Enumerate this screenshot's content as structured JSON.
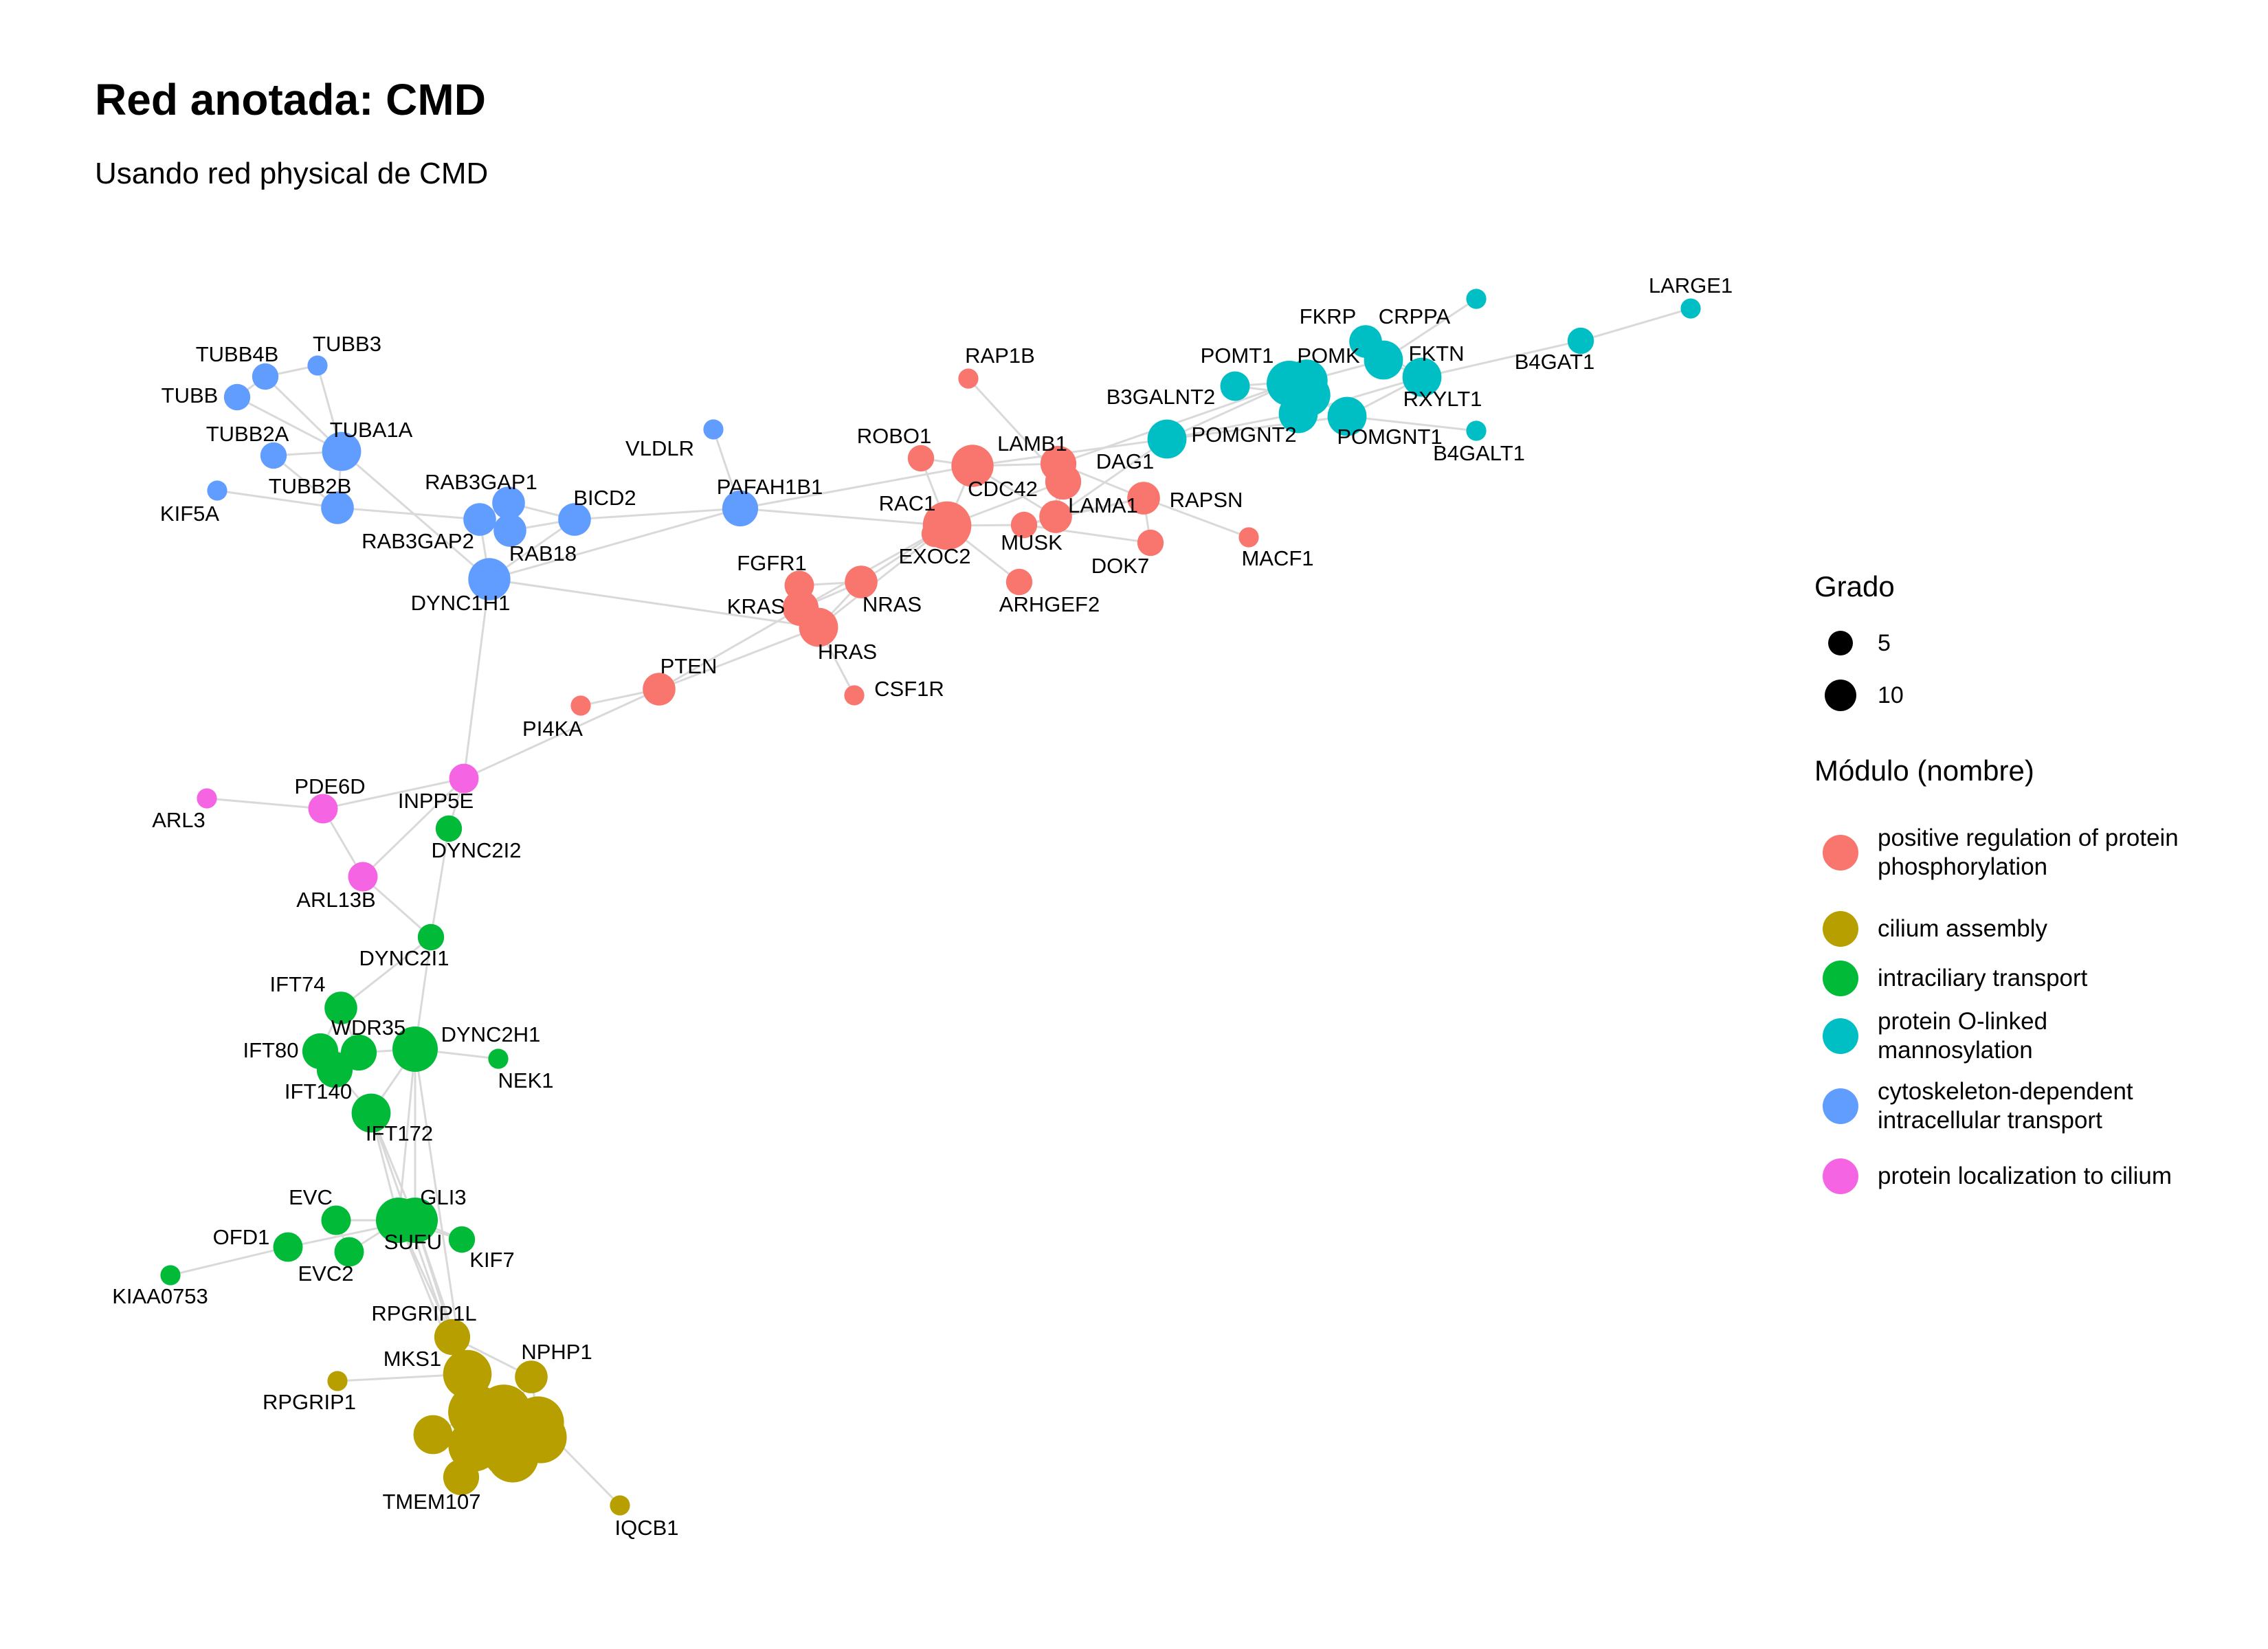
{
  "title": "Red anotada: CMD",
  "subtitle": "Usando red physical de CMD",
  "legend": {
    "size_title": "Grado",
    "sizes": [
      {
        "label": "5",
        "value": 5
      },
      {
        "label": "10",
        "value": 10
      }
    ],
    "module_title": "Módulo (nombre)",
    "modules": [
      {
        "id": "phos",
        "label": "positive regulation of protein phosphorylation",
        "color": "#F8766D"
      },
      {
        "id": "cil",
        "label": "cilium assembly",
        "color": "#B79F00"
      },
      {
        "id": "ift",
        "label": "intraciliary transport",
        "color": "#00BA38"
      },
      {
        "id": "man",
        "label": "protein O-linked mannosylation",
        "color": "#00BFC4"
      },
      {
        "id": "cyto",
        "label": "cytoskeleton-dependent intracellular transport",
        "color": "#619CFF"
      },
      {
        "id": "loc",
        "label": "protein localization to cilium",
        "color": "#F564E3"
      }
    ]
  },
  "edge_color": "#d9d9d9",
  "nodes": [
    {
      "id": "TUBB4B",
      "label": "TUBB4B",
      "module": "cyto",
      "degree": 4
    },
    {
      "id": "TUBB3",
      "label": "TUBB3",
      "module": "cyto",
      "degree": 2
    },
    {
      "id": "TUBB",
      "label": "TUBB",
      "module": "cyto",
      "degree": 4
    },
    {
      "id": "TUBB2A",
      "label": "TUBB2A",
      "module": "cyto",
      "degree": 4
    },
    {
      "id": "TUBA1A",
      "label": "TUBA1A",
      "module": "cyto",
      "degree": 8
    },
    {
      "id": "KIF5A",
      "label": "KIF5A",
      "module": "cyto",
      "degree": 2
    },
    {
      "id": "TUBB2B",
      "label": "TUBB2B",
      "module": "cyto",
      "degree": 6
    },
    {
      "id": "RAB3GAP1",
      "label": "RAB3GAP1",
      "module": "cyto",
      "degree": 6
    },
    {
      "id": "RAB3GAP2",
      "label": "RAB3GAP2",
      "module": "cyto",
      "degree": 6
    },
    {
      "id": "RAB18",
      "label": "RAB18",
      "module": "cyto",
      "degree": 6
    },
    {
      "id": "BICD2",
      "label": "BICD2",
      "module": "cyto",
      "degree": 6
    },
    {
      "id": "DYNC1H1",
      "label": "DYNC1H1",
      "module": "cyto",
      "degree": 9
    },
    {
      "id": "VLDLR",
      "label": "VLDLR",
      "module": "cyto",
      "degree": 2
    },
    {
      "id": "PAFAH1B1",
      "label": "PAFAH1B1",
      "module": "cyto",
      "degree": 7
    },
    {
      "id": "RAP1B",
      "label": "RAP1B",
      "module": "phos",
      "degree": 2
    },
    {
      "id": "ROBO1",
      "label": "ROBO1",
      "module": "phos",
      "degree": 4
    },
    {
      "id": "LAMB1",
      "label": "LAMB1",
      "module": "phos",
      "degree": 9
    },
    {
      "id": "DAG1",
      "label": "DAG1",
      "module": "phos",
      "degree": 7
    },
    {
      "id": "CDC42",
      "label": "CDC42",
      "module": "phos",
      "degree": 7
    },
    {
      "id": "RAC1",
      "label": "RAC1",
      "module": "phos",
      "degree": 11
    },
    {
      "id": "LAMA1",
      "label": "LAMA1",
      "module": "phos",
      "degree": 6
    },
    {
      "id": "RAPSN",
      "label": "RAPSN",
      "module": "phos",
      "degree": 6
    },
    {
      "id": "MUSK",
      "label": "MUSK",
      "module": "phos",
      "degree": 4
    },
    {
      "id": "DOK7",
      "label": "DOK7",
      "module": "phos",
      "degree": 4
    },
    {
      "id": "MACF1",
      "label": "MACF1",
      "module": "phos",
      "degree": 2
    },
    {
      "id": "EXOC2",
      "label": "EXOC2",
      "module": "phos",
      "degree": 4
    },
    {
      "id": "ARHGEF2",
      "label": "ARHGEF2",
      "module": "phos",
      "degree": 4
    },
    {
      "id": "FGFR1",
      "label": "FGFR1",
      "module": "phos",
      "degree": 5
    },
    {
      "id": "NRAS",
      "label": "NRAS",
      "module": "phos",
      "degree": 6
    },
    {
      "id": "KRAS",
      "label": "KRAS",
      "module": "phos",
      "degree": 7
    },
    {
      "id": "HRAS",
      "label": "HRAS",
      "module": "phos",
      "degree": 8
    },
    {
      "id": "CSF1R",
      "label": "CSF1R",
      "module": "phos",
      "degree": 2
    },
    {
      "id": "PTEN",
      "label": "PTEN",
      "module": "phos",
      "degree": 6
    },
    {
      "id": "PI4KA",
      "label": "PI4KA",
      "module": "phos",
      "degree": 2
    },
    {
      "id": "FKRP",
      "label": "FKRP",
      "module": "man",
      "degree": 6
    },
    {
      "id": "CRPPA",
      "label": "CRPPA",
      "module": "man",
      "degree": 8
    },
    {
      "id": "POMT1",
      "label": "POMT1",
      "module": "man",
      "degree": 5
    },
    {
      "id": "POMK",
      "label": "POMK",
      "module": "man",
      "degree": 9
    },
    {
      "id": "FKTN",
      "label": "FKTN",
      "module": "man",
      "degree": 8
    },
    {
      "id": "B3GALNT2",
      "label": "B3GALNT2",
      "module": "man",
      "degree": 10
    },
    {
      "id": "POMT2",
      "label": "",
      "module": "man",
      "degree": 9
    },
    {
      "id": "RXYLT1",
      "label": "RXYLT1",
      "module": "man",
      "degree": 8
    },
    {
      "id": "POMGNT2",
      "label": "POMGNT2",
      "module": "man",
      "degree": 8
    },
    {
      "id": "POMGNT1",
      "label": "POMGNT1",
      "module": "man",
      "degree": 8
    },
    {
      "id": "B4GAT1",
      "label": "B4GAT1",
      "module": "man",
      "degree": 4
    },
    {
      "id": "B4GALT1",
      "label": "B4GALT1",
      "module": "man",
      "degree": 2
    },
    {
      "id": "LARGE1",
      "label": "LARGE1",
      "module": "man",
      "degree": 2
    },
    {
      "id": "MAN_EXTRA",
      "label": "",
      "module": "man",
      "degree": 2
    },
    {
      "id": "INPP5E",
      "label": "INPP5E",
      "module": "loc",
      "degree": 5
    },
    {
      "id": "PDE6D",
      "label": "PDE6D",
      "module": "loc",
      "degree": 5
    },
    {
      "id": "ARL3",
      "label": "ARL3",
      "module": "loc",
      "degree": 2
    },
    {
      "id": "ARL13B",
      "label": "ARL13B",
      "module": "loc",
      "degree": 5
    },
    {
      "id": "DYNC2I2",
      "label": "DYNC2I2",
      "module": "ift",
      "degree": 4
    },
    {
      "id": "DYNC2I1",
      "label": "DYNC2I1",
      "module": "ift",
      "degree": 4
    },
    {
      "id": "IFT74",
      "label": "IFT74",
      "module": "ift",
      "degree": 6
    },
    {
      "id": "WDR35",
      "label": "WDR35",
      "module": "ift",
      "degree": 7
    },
    {
      "id": "IFT80",
      "label": "IFT80",
      "module": "ift",
      "degree": 7
    },
    {
      "id": "IFT140",
      "label": "IFT140",
      "module": "ift",
      "degree": 7
    },
    {
      "id": "DYNC2H1",
      "label": "DYNC2H1",
      "module": "ift",
      "degree": 10
    },
    {
      "id": "NEK1",
      "label": "NEK1",
      "module": "ift",
      "degree": 2
    },
    {
      "id": "IFT172",
      "label": "IFT172",
      "module": "ift",
      "degree": 8
    },
    {
      "id": "EVC",
      "label": "EVC",
      "module": "ift",
      "degree": 5
    },
    {
      "id": "GLI3",
      "label": "GLI3",
      "module": "ift",
      "degree": 10
    },
    {
      "id": "SUFU",
      "label": "SUFU",
      "module": "ift",
      "degree": 10
    },
    {
      "id": "OFD1",
      "label": "OFD1",
      "module": "ift",
      "degree": 5
    },
    {
      "id": "EVC2",
      "label": "EVC2",
      "module": "ift",
      "degree": 5
    },
    {
      "id": "KIF7",
      "label": "KIF7",
      "module": "ift",
      "degree": 4
    },
    {
      "id": "KIAA0753",
      "label": "KIAA0753",
      "module": "ift",
      "degree": 2
    },
    {
      "id": "RPGRIP1L",
      "label": "RPGRIP1L",
      "module": "cil",
      "degree": 7
    },
    {
      "id": "MKS1",
      "label": "MKS1",
      "module": "cil",
      "degree": 11
    },
    {
      "id": "NPHP1",
      "label": "NPHP1",
      "module": "cil",
      "degree": 6
    },
    {
      "id": "RPGRIP1",
      "label": "RPGRIP1",
      "module": "cil",
      "degree": 2
    },
    {
      "id": "CIL_A",
      "label": "",
      "module": "cil",
      "degree": 13
    },
    {
      "id": "CIL_B",
      "label": "",
      "module": "cil",
      "degree": 13
    },
    {
      "id": "CIL_C",
      "label": "",
      "module": "cil",
      "degree": 12
    },
    {
      "id": "CIL_D",
      "label": "",
      "module": "cil",
      "degree": 12
    },
    {
      "id": "CIL_E",
      "label": "",
      "module": "cil",
      "degree": 8
    },
    {
      "id": "CIL_F",
      "label": "",
      "module": "cil",
      "degree": 12
    },
    {
      "id": "CIL_G",
      "label": "",
      "module": "cil",
      "degree": 12
    },
    {
      "id": "CIL_H",
      "label": "",
      "module": "cil",
      "degree": 12
    },
    {
      "id": "CIL_I",
      "label": "",
      "module": "cil",
      "degree": 12
    },
    {
      "id": "TMEM107",
      "label": "TMEM107",
      "module": "cil",
      "degree": 7
    },
    {
      "id": "IQCB1",
      "label": "IQCB1",
      "module": "cil",
      "degree": 2
    }
  ],
  "edges": [
    [
      "TUBB4B",
      "TUBA1A"
    ],
    [
      "TUBB3",
      "TUBA1A"
    ],
    [
      "TUBB",
      "TUBA1A"
    ],
    [
      "TUBB2A",
      "TUBA1A"
    ],
    [
      "TUBB4B",
      "TUBB"
    ],
    [
      "TUBA1A",
      "TUBB2B"
    ],
    [
      "KIF5A",
      "TUBB2B"
    ],
    [
      "TUBB2B",
      "RAB3GAP2"
    ],
    [
      "TUBA1A",
      "DYNC1H1"
    ],
    [
      "TUBB3",
      "TUBB4B"
    ],
    [
      "TUBB2A",
      "TUBB2B"
    ],
    [
      "RAB3GAP1",
      "RAB3GAP2"
    ],
    [
      "RAB3GAP1",
      "RAB18"
    ],
    [
      "RAB3GAP2",
      "RAB18"
    ],
    [
      "RAB18",
      "BICD2"
    ],
    [
      "RAB3GAP1",
      "BICD2"
    ],
    [
      "BICD2",
      "DYNC1H1"
    ],
    [
      "BICD2",
      "PAFAH1B1"
    ],
    [
      "DYNC1H1",
      "PAFAH1B1"
    ],
    [
      "DYNC1H1",
      "RAB3GAP2"
    ],
    [
      "VLDLR",
      "PAFAH1B1"
    ],
    [
      "PAFAH1B1",
      "RAC1"
    ],
    [
      "PAFAH1B1",
      "LAMB1"
    ],
    [
      "DYNC1H1",
      "INPP5E"
    ],
    [
      "DYNC1H1",
      "HRAS"
    ],
    [
      "RAP1B",
      "CDC42"
    ],
    [
      "ROBO1",
      "RAC1"
    ],
    [
      "ROBO1",
      "LAMB1"
    ],
    [
      "LAMB1",
      "DAG1"
    ],
    [
      "LAMB1",
      "LAMA1"
    ],
    [
      "LAMB1",
      "RAC1"
    ],
    [
      "DAG1",
      "LAMA1"
    ],
    [
      "DAG1",
      "RAPSN"
    ],
    [
      "DAG1",
      "B3GALNT2"
    ],
    [
      "CDC42",
      "RAC1"
    ],
    [
      "CDC42",
      "LAMA1"
    ],
    [
      "RAC1",
      "EXOC2"
    ],
    [
      "RAC1",
      "ARHGEF2"
    ],
    [
      "RAC1",
      "MUSK"
    ],
    [
      "RAC1",
      "HRAS"
    ],
    [
      "RAC1",
      "NRAS"
    ],
    [
      "RAC1",
      "KRAS"
    ],
    [
      "LAMA1",
      "RAPSN"
    ],
    [
      "MUSK",
      "DOK7"
    ],
    [
      "MUSK",
      "RAPSN"
    ],
    [
      "RAPSN",
      "DOK7"
    ],
    [
      "RAPSN",
      "MACF1"
    ],
    [
      "LAMA1",
      "MUSK"
    ],
    [
      "FGFR1",
      "KRAS"
    ],
    [
      "FGFR1",
      "NRAS"
    ],
    [
      "FGFR1",
      "HRAS"
    ],
    [
      "NRAS",
      "HRAS"
    ],
    [
      "KRAS",
      "HRAS"
    ],
    [
      "KRAS",
      "NRAS"
    ],
    [
      "HRAS",
      "CSF1R"
    ],
    [
      "HRAS",
      "PTEN"
    ],
    [
      "PTEN",
      "PI4KA"
    ],
    [
      "PTEN",
      "KRAS"
    ],
    [
      "PTEN",
      "INPP5E"
    ],
    [
      "LAMB1",
      "POMGNT2"
    ],
    [
      "LAMA1",
      "POMGNT2"
    ],
    [
      "POMT1",
      "POMK"
    ],
    [
      "POMT1",
      "POMT2"
    ],
    [
      "FKRP",
      "FKTN"
    ],
    [
      "FKRP",
      "CRPPA"
    ],
    [
      "CRPPA",
      "FKTN"
    ],
    [
      "CRPPA",
      "POMK"
    ],
    [
      "POMK",
      "POMT2"
    ],
    [
      "POMK",
      "RXYLT1"
    ],
    [
      "FKTN",
      "RXYLT1"
    ],
    [
      "FKTN",
      "B4GAT1"
    ],
    [
      "B4GAT1",
      "LARGE1"
    ],
    [
      "B3GALNT2",
      "POMT2"
    ],
    [
      "B3GALNT2",
      "POMGNT2"
    ],
    [
      "B3GALNT2",
      "POMGNT1"
    ],
    [
      "B3GALNT2",
      "POMK"
    ],
    [
      "POMT2",
      "RXYLT1"
    ],
    [
      "POMGNT2",
      "POMGNT1"
    ],
    [
      "POMGNT1",
      "B4GALT1"
    ],
    [
      "POMGNT1",
      "FKTN"
    ],
    [
      "CRPPA",
      "MAN_EXTRA"
    ],
    [
      "POMGNT2",
      "RXYLT1"
    ],
    [
      "INPP5E",
      "PDE6D"
    ],
    [
      "INPP5E",
      "ARL13B"
    ],
    [
      "PDE6D",
      "ARL3"
    ],
    [
      "PDE6D",
      "ARL13B"
    ],
    [
      "ARL13B",
      "DYNC2I1"
    ],
    [
      "INPP5E",
      "DYNC2I2"
    ],
    [
      "DYNC2I2",
      "DYNC2I1"
    ],
    [
      "DYNC2I1",
      "DYNC2H1"
    ],
    [
      "DYNC2I1",
      "IFT74"
    ],
    [
      "IFT74",
      "WDR35"
    ],
    [
      "IFT74",
      "IFT80"
    ],
    [
      "WDR35",
      "IFT80"
    ],
    [
      "WDR35",
      "IFT140"
    ],
    [
      "WDR35",
      "DYNC2H1"
    ],
    [
      "IFT80",
      "IFT140"
    ],
    [
      "IFT140",
      "IFT172"
    ],
    [
      "IFT172",
      "DYNC2H1"
    ],
    [
      "DYNC2H1",
      "NEK1"
    ],
    [
      "DYNC2H1",
      "GLI3"
    ],
    [
      "IFT172",
      "SUFU"
    ],
    [
      "IFT172",
      "GLI3"
    ],
    [
      "EVC",
      "SUFU"
    ],
    [
      "EVC",
      "EVC2"
    ],
    [
      "EVC",
      "GLI3"
    ],
    [
      "OFD1",
      "GLI3"
    ],
    [
      "OFD1",
      "KIAA0753"
    ],
    [
      "EVC2",
      "SUFU"
    ],
    [
      "GLI3",
      "SUFU"
    ],
    [
      "GLI3",
      "KIF7"
    ],
    [
      "SUFU",
      "KIF7"
    ],
    [
      "SUFU",
      "RPGRIP1L"
    ],
    [
      "GLI3",
      "RPGRIP1L"
    ],
    [
      "DYNC2H1",
      "SUFU"
    ],
    [
      "RPGRIP1L",
      "MKS1"
    ],
    [
      "RPGRIP1L",
      "NPHP1"
    ],
    [
      "RPGRIP1",
      "MKS1"
    ],
    [
      "MKS1",
      "CIL_A"
    ],
    [
      "MKS1",
      "CIL_B"
    ],
    [
      "NPHP1",
      "CIL_C"
    ],
    [
      "CIL_A",
      "CIL_B"
    ],
    [
      "CIL_B",
      "CIL_C"
    ],
    [
      "CIL_A",
      "CIL_E"
    ],
    [
      "CIL_A",
      "CIL_F"
    ],
    [
      "CIL_F",
      "CIL_G"
    ],
    [
      "CIL_G",
      "CIL_H"
    ],
    [
      "CIL_C",
      "CIL_D"
    ],
    [
      "CIL_D",
      "CIL_I"
    ],
    [
      "CIL_H",
      "CIL_I"
    ],
    [
      "CIL_F",
      "TMEM107"
    ],
    [
      "CIL_G",
      "TMEM107"
    ],
    [
      "CIL_D",
      "IQCB1"
    ],
    [
      "CIL_B",
      "CIL_H"
    ],
    [
      "CIL_A",
      "CIL_G"
    ],
    [
      "SUFU",
      "CIL_A"
    ],
    [
      "GLI3",
      "MKS1"
    ],
    [
      "IFT172",
      "CIL_A"
    ],
    [
      "DYNC2H1",
      "CIL_F"
    ],
    [
      "NPHP1",
      "CIL_D"
    ]
  ]
}
